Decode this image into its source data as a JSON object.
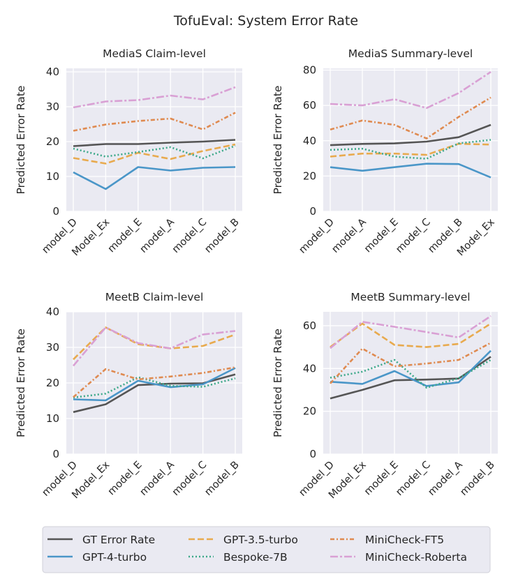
{
  "chart_data": {
    "title": "TofuEval: System Error Rate",
    "type": "line",
    "grid": true,
    "legend_placement": "bottom-center",
    "series_styles": [
      {
        "name": "GT Error Rate",
        "color": "#555555",
        "dash": "solid"
      },
      {
        "name": "GPT-4-turbo",
        "color": "#4a96c8",
        "dash": "solid"
      },
      {
        "name": "GPT-3.5-turbo",
        "color": "#e8aa4e",
        "dash": "dashed"
      },
      {
        "name": "Bespoke-7B",
        "color": "#3ba888",
        "dash": "dotted"
      },
      {
        "name": "MiniCheck-FT5",
        "color": "#df8a50",
        "dash": "dashdot"
      },
      {
        "name": "MiniCheck-Roberta",
        "color": "#d9a0d4",
        "dash": "dashdot-long"
      }
    ],
    "subplots": [
      {
        "title": "MediaS Claim-level",
        "ylabel": "Predicted Error Rate",
        "ylim": [
          0,
          41
        ],
        "yticks": [
          0,
          10,
          20,
          30,
          40
        ],
        "categories": [
          "model_D",
          "Model_Ex",
          "model_E",
          "model_A",
          "model_C",
          "model_B"
        ],
        "series": [
          {
            "name": "GT Error Rate",
            "values": [
              18.7,
              19.3,
              19.3,
              19.7,
              20.0,
              20.5
            ]
          },
          {
            "name": "GPT-4-turbo",
            "values": [
              11.2,
              6.4,
              12.7,
              11.7,
              12.5,
              12.7
            ]
          },
          {
            "name": "GPT-3.5-turbo",
            "values": [
              15.3,
              13.7,
              16.8,
              15.0,
              17.3,
              19.2
            ]
          },
          {
            "name": "Bespoke-7B",
            "values": [
              18.0,
              15.7,
              17.0,
              18.4,
              15.2,
              18.8
            ]
          },
          {
            "name": "MiniCheck-FT5",
            "values": [
              23.1,
              24.9,
              25.9,
              26.6,
              23.5,
              28.3
            ]
          },
          {
            "name": "MiniCheck-Roberta",
            "values": [
              29.8,
              31.5,
              31.9,
              33.2,
              32.1,
              35.6
            ]
          }
        ]
      },
      {
        "title": "MediaS Summary-level",
        "ylabel": "Predicted Error Rate",
        "ylim": [
          0,
          81
        ],
        "yticks": [
          0,
          20,
          40,
          60,
          80
        ],
        "categories": [
          "model_D",
          "model_A",
          "model_E",
          "model_C",
          "model_B",
          "Model_Ex"
        ],
        "series": [
          {
            "name": "GT Error Rate",
            "values": [
              37.5,
              38.2,
              38.5,
              39.5,
              42.0,
              49.0
            ]
          },
          {
            "name": "GPT-4-turbo",
            "values": [
              25.0,
              23.0,
              25.0,
              27.0,
              26.8,
              19.2
            ]
          },
          {
            "name": "GPT-3.5-turbo",
            "values": [
              31.0,
              32.7,
              32.7,
              32.0,
              38.3,
              37.8
            ]
          },
          {
            "name": "Bespoke-7B",
            "values": [
              34.8,
              35.5,
              31.0,
              29.8,
              38.5,
              40.5
            ]
          },
          {
            "name": "MiniCheck-FT5",
            "values": [
              46.3,
              51.5,
              49.0,
              41.3,
              53.5,
              64.5
            ]
          },
          {
            "name": "MiniCheck-Roberta",
            "values": [
              60.8,
              60.0,
              63.5,
              58.5,
              67.0,
              79.0
            ]
          }
        ]
      },
      {
        "title": "MeetB Claim-level",
        "ylabel": "Predicted Error Rate",
        "ylim": [
          0,
          40
        ],
        "yticks": [
          0,
          10,
          20,
          30,
          40
        ],
        "categories": [
          "model_D",
          "Model_Ex",
          "model_E",
          "model_A",
          "model_C",
          "model_B"
        ],
        "series": [
          {
            "name": "GT Error Rate",
            "values": [
              11.8,
              14.0,
              19.4,
              19.8,
              19.9,
              22.4
            ]
          },
          {
            "name": "GPT-4-turbo",
            "values": [
              15.4,
              15.1,
              20.6,
              18.8,
              19.6,
              24.2
            ]
          },
          {
            "name": "GPT-3.5-turbo",
            "values": [
              26.6,
              35.6,
              30.9,
              29.7,
              30.4,
              33.6
            ]
          },
          {
            "name": "Bespoke-7B",
            "values": [
              15.9,
              17.0,
              21.6,
              19.2,
              18.9,
              21.3
            ]
          },
          {
            "name": "MiniCheck-FT5",
            "values": [
              16.0,
              23.9,
              21.0,
              21.8,
              22.8,
              24.4
            ]
          },
          {
            "name": "MiniCheck-Roberta",
            "values": [
              24.8,
              35.6,
              31.2,
              29.7,
              33.6,
              34.6
            ]
          }
        ]
      },
      {
        "title": "MeetB Summary-level",
        "ylabel": "Predicted Error Rate",
        "ylim": [
          0,
          66.5
        ],
        "yticks": [
          0,
          20,
          40,
          60
        ],
        "categories": [
          "model_D",
          "Model_Ex",
          "model_E",
          "model_C",
          "model_A",
          "model_B"
        ],
        "series": [
          {
            "name": "GT Error Rate",
            "values": [
              26.0,
              30.0,
              34.5,
              34.8,
              35.3,
              45.5
            ]
          },
          {
            "name": "GPT-4-turbo",
            "values": [
              33.8,
              32.8,
              38.8,
              31.8,
              33.5,
              48.3
            ]
          },
          {
            "name": "GPT-3.5-turbo",
            "values": [
              50.0,
              61.0,
              51.0,
              50.0,
              51.5,
              61.0
            ]
          },
          {
            "name": "Bespoke-7B",
            "values": [
              35.7,
              38.5,
              44.0,
              31.0,
              35.5,
              44.0
            ]
          },
          {
            "name": "MiniCheck-FT5",
            "values": [
              33.0,
              49.3,
              41.0,
              42.3,
              44.0,
              52.0
            ]
          },
          {
            "name": "MiniCheck-Roberta",
            "values": [
              49.5,
              61.8,
              59.5,
              57.0,
              54.5,
              64.5
            ]
          }
        ]
      }
    ],
    "legend": [
      "GT Error Rate",
      "GPT-4-turbo",
      "GPT-3.5-turbo",
      "Bespoke-7B",
      "MiniCheck-FT5",
      "MiniCheck-Roberta"
    ]
  }
}
